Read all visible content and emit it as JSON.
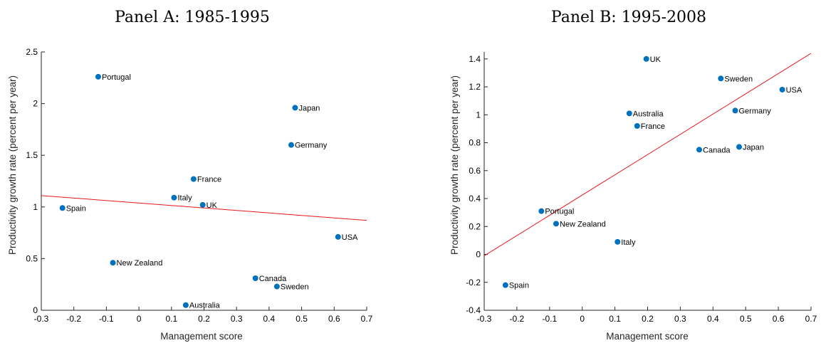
{
  "figure": {
    "colors": {
      "points": "#0072bd",
      "fit_line": "#e8161b",
      "axes": "#262626"
    }
  },
  "chart_data": [
    {
      "type": "scatter",
      "title": "Panel A: 1985-1995",
      "xlabel": "Management score",
      "ylabel": "Productivity growth rate (percent per year)",
      "xlim": [
        -0.3,
        0.7
      ],
      "ylim": [
        0,
        2.5
      ],
      "xticks": [
        -0.3,
        -0.2,
        -0.1,
        0,
        0.1,
        0.2,
        0.3,
        0.4,
        0.5,
        0.6,
        0.7
      ],
      "xtick_labels": [
        "-0.3",
        "-0.2",
        "-0.1",
        "0",
        "0.1",
        "0.2",
        "0.3",
        "0.4",
        "0.5",
        "0.6",
        "0.7"
      ],
      "yticks": [
        0,
        0.5,
        1,
        1.5,
        2,
        2.5
      ],
      "ytick_labels": [
        "0",
        "0.5",
        "1",
        "1.5",
        "2",
        "2.5"
      ],
      "grid": false,
      "points": [
        {
          "label": "Portugal",
          "x": -0.125,
          "y": 2.26
        },
        {
          "label": "Japan",
          "x": 0.48,
          "y": 1.96
        },
        {
          "label": "Germany",
          "x": 0.468,
          "y": 1.6
        },
        {
          "label": "France",
          "x": 0.168,
          "y": 1.27
        },
        {
          "label": "Italy",
          "x": 0.108,
          "y": 1.09
        },
        {
          "label": "UK",
          "x": 0.196,
          "y": 1.02
        },
        {
          "label": "Spain",
          "x": -0.235,
          "y": 0.99
        },
        {
          "label": "USA",
          "x": 0.612,
          "y": 0.71
        },
        {
          "label": "New Zealand",
          "x": -0.08,
          "y": 0.46
        },
        {
          "label": "Canada",
          "x": 0.358,
          "y": 0.31
        },
        {
          "label": "Sweden",
          "x": 0.424,
          "y": 0.23
        },
        {
          "label": "Australia",
          "x": 0.144,
          "y": 0.05
        }
      ],
      "fit_line": {
        "x": [
          -0.3,
          0.7
        ],
        "y": [
          1.11,
          0.87
        ]
      }
    },
    {
      "type": "scatter",
      "title": "Panel B: 1995-2008",
      "xlabel": "Management score",
      "ylabel": "Productivity growth rate (percent per year)",
      "xlim": [
        -0.3,
        0.7
      ],
      "ylim": [
        -0.4,
        1.45
      ],
      "xticks": [
        -0.3,
        -0.2,
        -0.1,
        0,
        0.1,
        0.2,
        0.3,
        0.4,
        0.5,
        0.6,
        0.7
      ],
      "xtick_labels": [
        "-0.3",
        "-0.2",
        "-0.1",
        "0",
        "0.1",
        "0.2",
        "0.3",
        "0.4",
        "0.5",
        "0.6",
        "0.7"
      ],
      "yticks": [
        -0.4,
        -0.2,
        0,
        0.2,
        0.4,
        0.6,
        0.8,
        1,
        1.2,
        1.4
      ],
      "ytick_labels": [
        "-0.4",
        "-0.2",
        "0",
        "0.2",
        "0.4",
        "0.6",
        "0.8",
        "1",
        "1.2",
        "1.4"
      ],
      "grid": false,
      "points": [
        {
          "label": "UK",
          "x": 0.196,
          "y": 1.4
        },
        {
          "label": "Sweden",
          "x": 0.424,
          "y": 1.26
        },
        {
          "label": "USA",
          "x": 0.612,
          "y": 1.18
        },
        {
          "label": "Germany",
          "x": 0.468,
          "y": 1.03
        },
        {
          "label": "Australia",
          "x": 0.144,
          "y": 1.01
        },
        {
          "label": "France",
          "x": 0.168,
          "y": 0.92
        },
        {
          "label": "Japan",
          "x": 0.48,
          "y": 0.77
        },
        {
          "label": "Canada",
          "x": 0.358,
          "y": 0.75
        },
        {
          "label": "Portugal",
          "x": -0.125,
          "y": 0.31
        },
        {
          "label": "New Zealand",
          "x": -0.08,
          "y": 0.22
        },
        {
          "label": "Italy",
          "x": 0.108,
          "y": 0.09
        },
        {
          "label": "Spain",
          "x": -0.235,
          "y": -0.22
        }
      ],
      "fit_line": {
        "x": [
          -0.3,
          0.7
        ],
        "y": [
          -0.01,
          1.44
        ]
      }
    }
  ]
}
